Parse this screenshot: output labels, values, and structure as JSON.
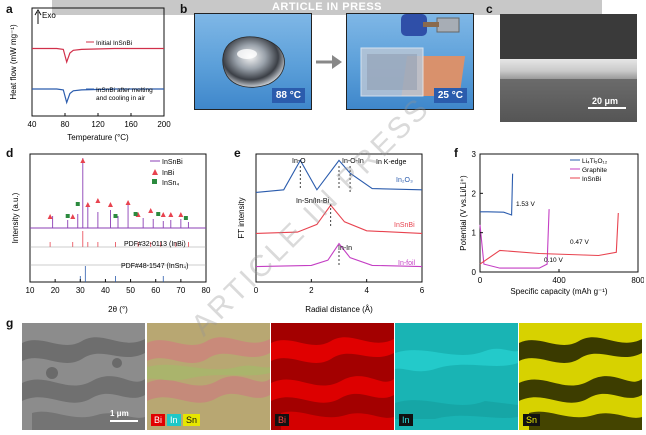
{
  "header": {
    "banner": "ARTICLE IN PRESS",
    "watermark": "ARTICLE IN PRESS"
  },
  "panels": {
    "a": "a",
    "b": "b",
    "c": "c",
    "d": "d",
    "e": "e",
    "f": "f",
    "g": "g"
  },
  "panel_a": {
    "exo_label": "Exo",
    "ylabel": "Heat flow (mW mg⁻¹)",
    "xlabel": "Temperature (°C)",
    "xticks": [
      "40",
      "80",
      "120",
      "160",
      "200"
    ],
    "legend1": "Initial InSnBi",
    "legend2_line1": "InSnBi after melting",
    "legend2_line2": "and cooling in air",
    "colors": {
      "initial": "#d1304a",
      "cooled": "#2b5cad"
    }
  },
  "panel_b": {
    "temp_left": "88 °C",
    "temp_right": "25 °C"
  },
  "panel_c": {
    "scale_bar": "20 μm"
  },
  "panel_d": {
    "ylabel": "Intensity (a.u.)",
    "xlabel": "2θ (°)",
    "xticks": [
      "10",
      "20",
      "30",
      "40",
      "50",
      "60",
      "70",
      "80"
    ],
    "legend": [
      "InSnBi",
      "InBi",
      "InSn₄"
    ],
    "ref1": "PDF#32-0113 (InBi)",
    "ref2": "PDF#48-1547 (InSn₄)",
    "colors": {
      "insnbi": "#8b3fb5",
      "inbi": "#e8434f",
      "insn4": "#2b8a3e",
      "ref_insn4": "#2b5cad"
    }
  },
  "panel_e": {
    "ylabel": "FT intensity",
    "xlabel": "Radial distance (Å)",
    "xticks": [
      "0",
      "2",
      "4",
      "6"
    ],
    "edge_label": "In K-edge",
    "peak_in_o": "In-O",
    "peak_in_o_in": "In-O-In",
    "peak_in_sn_bi": "In-Sn/In-Bi",
    "peak_in_in": "In-In",
    "trace_in2o3": "In₂O₃",
    "trace_insnbi": "InSnBi",
    "trace_infoil": "In-foil",
    "colors": {
      "in2o3": "#2b5cad",
      "insnbi": "#e8434f",
      "infoil": "#c43fc4"
    }
  },
  "panel_f": {
    "ylabel": "Potential (V vs.Li/Li⁺)",
    "xlabel": "Specific capacity (mAh g⁻¹)",
    "xticks": [
      "0",
      "400",
      "800"
    ],
    "yticks": [
      "0",
      "1",
      "2",
      "3"
    ],
    "legend": [
      "Li₄Ti₅O₁₂",
      "Graphite",
      "InSnBi"
    ],
    "v_lto": "1.53 V",
    "v_graphite": "0.10 V",
    "v_insnbi": "0.47 V",
    "colors": {
      "lto": "#2b5cad",
      "graphite": "#c43fc4",
      "insnbi": "#e8434f"
    }
  },
  "panel_g": {
    "scale_bar": "1 μm",
    "overlay_tags": [
      "Bi",
      "In",
      "Sn"
    ],
    "map_bi": "Bi",
    "map_in": "In",
    "map_sn": "Sn"
  },
  "chart_data": [
    {
      "type": "line",
      "title": "a",
      "xlabel": "Temperature (°C)",
      "ylabel": "Heat flow (mW mg⁻¹)",
      "xlim": [
        40,
        200
      ],
      "series": [
        {
          "name": "Initial InSnBi",
          "x": [
            40,
            70,
            78,
            82,
            86,
            90,
            100,
            140,
            200
          ],
          "y": [
            0.3,
            0.3,
            0.28,
            0.0,
            0.2,
            0.26,
            0.28,
            0.3,
            0.3
          ]
        },
        {
          "name": "InSnBi after melting and cooling in air",
          "x": [
            40,
            70,
            78,
            82,
            86,
            90,
            100,
            140,
            200
          ],
          "y": [
            -0.6,
            -0.6,
            -0.62,
            -0.9,
            -0.7,
            -0.64,
            -0.62,
            -0.6,
            -0.6
          ]
        }
      ]
    },
    {
      "type": "line",
      "title": "d",
      "xlabel": "2θ (°)",
      "ylabel": "Intensity (a.u.)",
      "xlim": [
        10,
        80
      ],
      "series": [
        {
          "name": "InSnBi",
          "peaks_2theta": [
            19,
            25,
            29,
            31,
            33,
            37,
            42,
            45,
            49,
            55,
            59,
            63,
            66,
            70,
            73
          ]
        },
        {
          "name": "PDF#32-0113 (InBi)",
          "peaks_2theta": [
            18,
            27,
            31,
            33,
            37,
            44,
            53,
            58,
            62,
            68,
            73
          ]
        },
        {
          "name": "PDF#48-1547 (InSn4)",
          "peaks_2theta": [
            30,
            32,
            44,
            63
          ]
        }
      ]
    },
    {
      "type": "line",
      "title": "e",
      "xlabel": "Radial distance (Å)",
      "ylabel": "FT intensity",
      "xlim": [
        0,
        6
      ],
      "series": [
        {
          "name": "In2O3",
          "x": [
            0,
            1.0,
            1.6,
            2.2,
            3.0,
            3.4,
            4.2,
            6
          ],
          "y": [
            0.7,
            0.72,
            0.95,
            0.72,
            0.95,
            0.85,
            0.73,
            0.72
          ]
        },
        {
          "name": "InSnBi",
          "x": [
            0,
            1.5,
            2.2,
            2.7,
            3.2,
            4.0,
            6
          ],
          "y": [
            0.38,
            0.39,
            0.45,
            0.6,
            0.47,
            0.4,
            0.38
          ]
        },
        {
          "name": "In-foil",
          "x": [
            0,
            2.0,
            2.6,
            3.0,
            3.4,
            4.2,
            6
          ],
          "y": [
            0.12,
            0.13,
            0.17,
            0.3,
            0.19,
            0.13,
            0.12
          ]
        }
      ]
    },
    {
      "type": "line",
      "title": "f",
      "xlabel": "Specific capacity (mAh g⁻¹)",
      "ylabel": "Potential (V vs.Li/Li⁺)",
      "xlim": [
        0,
        800
      ],
      "ylim": [
        0,
        3
      ],
      "series": [
        {
          "name": "Li4Ti5O12",
          "x": [
            0,
            40,
            120,
            160,
            165
          ],
          "y": [
            1.53,
            1.53,
            1.52,
            1.45,
            2.5
          ]
        },
        {
          "name": "Graphite",
          "x": [
            0,
            20,
            100,
            300,
            340,
            350
          ],
          "y": [
            1.2,
            0.2,
            0.1,
            0.1,
            0.2,
            1.6
          ]
        },
        {
          "name": "InSnBi",
          "x": [
            0,
            100,
            300,
            600,
            690,
            700
          ],
          "y": [
            0.2,
            0.55,
            0.47,
            0.42,
            0.5,
            1.5
          ]
        }
      ]
    }
  ]
}
